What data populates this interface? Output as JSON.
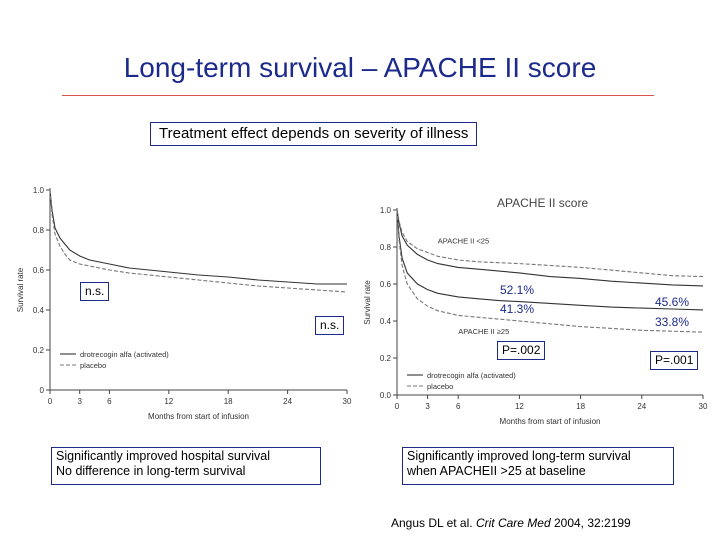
{
  "slide": {
    "title": "Long-term survival – APACHE II score",
    "subtitle": "Treatment effect depends on severity of illness",
    "left_caption_line1": "Significantly improved hospital survival",
    "left_caption_line2": "No difference in long-term survival",
    "right_caption_line1": "Significantly improved long-term survival",
    "right_caption_line2": "when APACHEII >25 at baseline",
    "citation_authors": "Angus DL et al.",
    "citation_journal": "Crit Care Med",
    "citation_ref": "2004, 32:2199"
  },
  "annotations": {
    "left_ns_upper": "n.s.",
    "left_ns_lower": "n.s.",
    "pct_521": "52.1%",
    "pct_413": "41.3%",
    "pct_456": "45.6%",
    "pct_338": "33.8%",
    "p_002": "P=.002",
    "p_001": "P=.001"
  },
  "chart_data": [
    {
      "type": "line",
      "title": "",
      "xlabel": "Months from start of infusion",
      "ylabel": "Survival rate",
      "xlim": [
        0,
        30
      ],
      "ylim": [
        0,
        1.0
      ],
      "xticks": [
        0,
        3,
        6,
        12,
        18,
        24,
        30
      ],
      "yticks": [
        0,
        0.2,
        0.4,
        0.6,
        0.8,
        1.0
      ],
      "ytick_labels": [
        "0",
        "0.2",
        "0.4",
        "0.6",
        "0.8",
        "1.0"
      ],
      "grid": false,
      "legend": "bottom-left",
      "series": [
        {
          "name": "drotrecogin alfa (activated)",
          "style": "solid",
          "x": [
            0,
            0.2,
            0.5,
            1,
            1.5,
            2,
            3,
            4,
            5,
            6,
            8,
            10,
            12,
            15,
            18,
            21,
            24,
            27,
            30
          ],
          "y": [
            1.0,
            0.9,
            0.81,
            0.76,
            0.73,
            0.7,
            0.67,
            0.65,
            0.64,
            0.63,
            0.61,
            0.6,
            0.59,
            0.575,
            0.565,
            0.55,
            0.54,
            0.53,
            0.53
          ]
        },
        {
          "name": "placebo",
          "style": "dashed",
          "x": [
            0,
            0.2,
            0.5,
            1,
            1.5,
            2,
            3,
            4,
            5,
            6,
            8,
            10,
            12,
            15,
            18,
            21,
            24,
            27,
            30
          ],
          "y": [
            1.0,
            0.88,
            0.78,
            0.72,
            0.68,
            0.65,
            0.63,
            0.62,
            0.61,
            0.6,
            0.585,
            0.575,
            0.565,
            0.55,
            0.535,
            0.52,
            0.51,
            0.5,
            0.49
          ]
        }
      ]
    },
    {
      "type": "line",
      "title": "APACHE II score",
      "xlabel": "Months from start of infusion",
      "ylabel": "Survival rate",
      "xlim": [
        0,
        30
      ],
      "ylim": [
        0,
        1.0
      ],
      "xticks": [
        0,
        3,
        6,
        12,
        18,
        24,
        30
      ],
      "yticks": [
        0,
        0.2,
        0.4,
        0.6,
        0.8,
        1.0
      ],
      "ytick_labels": [
        "0.0",
        "0.2",
        "0.4",
        "0.6",
        "0.8",
        "1.0"
      ],
      "grid": false,
      "legend": "bottom-left",
      "group_labels": [
        {
          "text": "APACHE II <25",
          "x": 4,
          "y": 0.82
        },
        {
          "text": "APACHE II ≥25",
          "x": 6,
          "y": 0.33
        }
      ],
      "series": [
        {
          "name": "drotrecogin alfa (activated)",
          "group": "APACHE II <25",
          "style": "solid",
          "x": [
            0,
            0.2,
            0.5,
            1,
            2,
            3,
            4,
            6,
            8,
            10,
            12,
            15,
            18,
            21,
            24,
            27,
            30
          ],
          "y": [
            1.0,
            0.93,
            0.86,
            0.81,
            0.76,
            0.73,
            0.71,
            0.69,
            0.68,
            0.67,
            0.66,
            0.64,
            0.63,
            0.615,
            0.605,
            0.595,
            0.59
          ]
        },
        {
          "name": "placebo",
          "group": "APACHE II <25",
          "style": "dashed",
          "x": [
            0,
            0.2,
            0.5,
            1,
            2,
            3,
            4,
            6,
            8,
            10,
            12,
            15,
            18,
            21,
            24,
            27,
            30
          ],
          "y": [
            1.0,
            0.94,
            0.88,
            0.83,
            0.79,
            0.77,
            0.75,
            0.73,
            0.72,
            0.715,
            0.71,
            0.7,
            0.69,
            0.675,
            0.66,
            0.645,
            0.64
          ]
        },
        {
          "name": "drotrecogin alfa (activated)",
          "group": "APACHE II ≥25",
          "style": "solid",
          "x": [
            0,
            0.2,
            0.5,
            1,
            2,
            3,
            4,
            6,
            8,
            10,
            12,
            15,
            18,
            21,
            24,
            27,
            30
          ],
          "y": [
            1.0,
            0.86,
            0.74,
            0.66,
            0.6,
            0.57,
            0.55,
            0.53,
            0.52,
            0.51,
            0.505,
            0.495,
            0.485,
            0.475,
            0.47,
            0.465,
            0.46
          ]
        },
        {
          "name": "placebo",
          "group": "APACHE II ≥25",
          "style": "dashed",
          "x": [
            0,
            0.2,
            0.5,
            1,
            2,
            3,
            4,
            6,
            8,
            10,
            12,
            15,
            18,
            21,
            24,
            27,
            30
          ],
          "y": [
            1.0,
            0.84,
            0.7,
            0.6,
            0.52,
            0.48,
            0.455,
            0.43,
            0.42,
            0.41,
            0.4,
            0.385,
            0.37,
            0.36,
            0.35,
            0.345,
            0.34
          ]
        }
      ]
    }
  ]
}
